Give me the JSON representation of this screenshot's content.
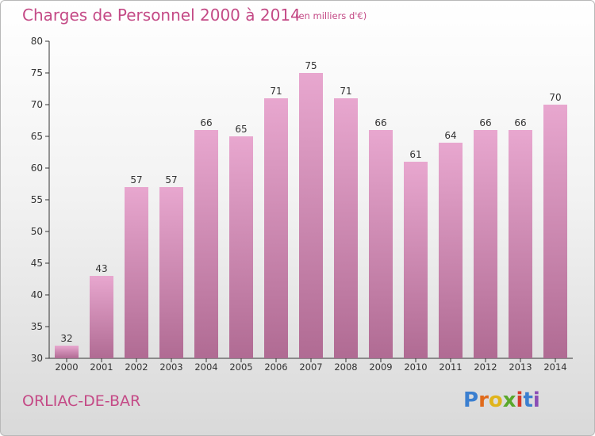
{
  "header": {
    "title": "Charges de Personnel 2000 à 2014",
    "subtitle": "(en milliers d'€)"
  },
  "footer": {
    "town": "ORLIAC-DE-BAR",
    "logo_text": "Proxiti"
  },
  "colors": {
    "title": "#c44a86",
    "bar_top": "#e8a7cf",
    "bar_bottom": "#b06b93",
    "axis": "#333333"
  },
  "chart_data": {
    "type": "bar",
    "title": "Charges de Personnel 2000 à 2014",
    "subtitle": "(en milliers d'€)",
    "categories": [
      "2000",
      "2001",
      "2002",
      "2003",
      "2004",
      "2005",
      "2006",
      "2007",
      "2008",
      "2009",
      "2010",
      "2011",
      "2012",
      "2013",
      "2014"
    ],
    "values": [
      32,
      43,
      57,
      57,
      66,
      65,
      71,
      75,
      71,
      66,
      61,
      64,
      66,
      66,
      70
    ],
    "ylim": [
      30,
      80
    ],
    "yticks": [
      30,
      35,
      40,
      45,
      50,
      55,
      60,
      65,
      70,
      75,
      80
    ],
    "grid": false,
    "data_labels": true
  }
}
